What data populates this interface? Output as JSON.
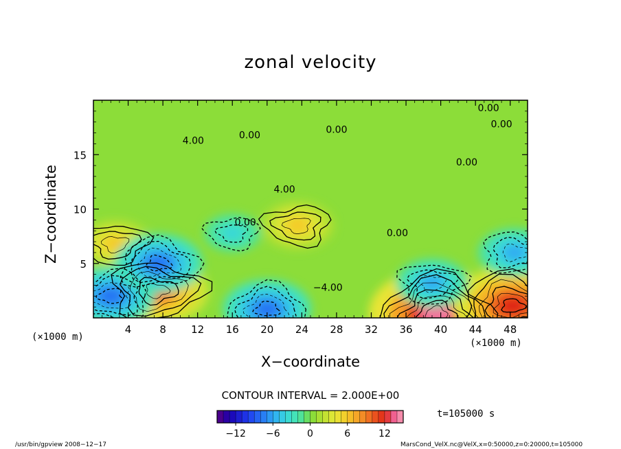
{
  "chart_data": {
    "type": "heatmap",
    "title": "zonal velocity",
    "xlabel": "X−coordinate",
    "ylabel": "Z−coordinate",
    "x_unit_left": "(×1000 m)",
    "x_unit_right": "(×1000 m)",
    "xlim": [
      0,
      50
    ],
    "ylim": [
      0,
      20
    ],
    "x_ticks": [
      4,
      8,
      12,
      16,
      20,
      24,
      28,
      32,
      36,
      40,
      44,
      48
    ],
    "y_ticks": [
      5,
      10,
      15
    ],
    "contour_interval_text": "CONTOUR INTERVAL = 2.000E+00",
    "contour_labels": [
      {
        "text": "0.00",
        "x": 45.5,
        "z": 19.0
      },
      {
        "text": "0.00",
        "x": 47.0,
        "z": 17.5
      },
      {
        "text": "0.00",
        "x": 43.0,
        "z": 14.0
      },
      {
        "text": "0.00",
        "x": 35.0,
        "z": 7.5
      },
      {
        "text": "0.00",
        "x": 17.5,
        "z": 8.5
      },
      {
        "text": "0.00",
        "x": 28.0,
        "z": 17.0
      },
      {
        "text": "0.00",
        "x": 18.0,
        "z": 16.5
      },
      {
        "text": "4.00",
        "x": 11.5,
        "z": 16.0
      },
      {
        "text": "4.00",
        "x": 22.0,
        "z": 11.5
      },
      {
        "text": "−4.00",
        "x": 27.0,
        "z": 2.5
      }
    ],
    "features": [
      {
        "type": "max",
        "x": 39.5,
        "z": 0.4,
        "value": 14
      },
      {
        "type": "max",
        "x": 48.3,
        "z": 1.1,
        "value": 12
      },
      {
        "type": "max",
        "x": 7.3,
        "z": 2.5,
        "value": 10
      },
      {
        "type": "max",
        "x": 2.5,
        "z": 6.8,
        "value": 6
      },
      {
        "type": "max",
        "x": 23.5,
        "z": 8.5,
        "value": 6
      },
      {
        "type": "min",
        "x": 2.0,
        "z": 2.0,
        "value": -8
      },
      {
        "type": "min",
        "x": 20.0,
        "z": 0.8,
        "value": -8
      },
      {
        "type": "min",
        "x": 7.5,
        "z": 5.0,
        "value": -8
      },
      {
        "type": "min",
        "x": 48.5,
        "z": 6.0,
        "value": -6
      },
      {
        "type": "min",
        "x": 39.0,
        "z": 3.2,
        "value": -6
      },
      {
        "type": "min",
        "x": 16.0,
        "z": 7.8,
        "value": -4
      }
    ]
  },
  "colorbar": {
    "min": -15,
    "max": 15,
    "ticks": [
      "−12",
      "−6",
      "0",
      "6",
      "12"
    ],
    "tick_values": [
      -12,
      -6,
      0,
      6,
      12
    ]
  },
  "time_label": "t=105000 s",
  "footer_left": "/usr/bin/gpview   2008−12−17",
  "footer_right": "MarsCond_VelX.nc@VelX,x=0:50000,z=0:20000,t=105000"
}
